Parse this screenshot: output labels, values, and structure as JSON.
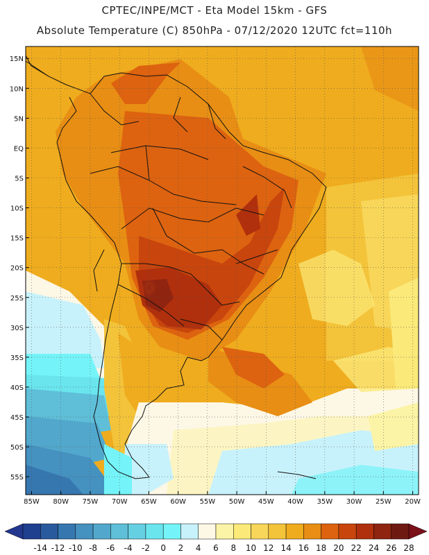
{
  "header": {
    "line1": "CPTEC/INPE/MCT -  Eta Model 15km - GFS",
    "line2": "Absolute Temperature (C) 850hPa - 07/12/2020 12UTC fct=110h"
  },
  "map": {
    "lat_labels": [
      "15N",
      "10N",
      "5N",
      "EQ",
      "5S",
      "10S",
      "15S",
      "20S",
      "25S",
      "30S",
      "35S",
      "40S",
      "45S",
      "50S",
      "55S"
    ],
    "lat_values": [
      15,
      10,
      5,
      0,
      -5,
      -10,
      -15,
      -20,
      -25,
      -30,
      -35,
      -40,
      -45,
      -50,
      -55
    ],
    "lon_labels": [
      "85W",
      "80W",
      "75W",
      "70W",
      "65W",
      "60W",
      "55W",
      "50W",
      "45W",
      "40W",
      "35W",
      "30W",
      "25W",
      "20W"
    ],
    "lon_values": [
      -85,
      -80,
      -75,
      -70,
      -65,
      -60,
      -55,
      -50,
      -45,
      -40,
      -35,
      -30,
      -25,
      -20
    ],
    "lon_range": [
      -86,
      -19
    ],
    "lat_range": [
      -58,
      17
    ]
  },
  "colorbar": {
    "labels": [
      "-14",
      "-12",
      "-10",
      "-8",
      "-6",
      "-4",
      "-2",
      "0",
      "2",
      "4",
      "6",
      "8",
      "10",
      "12",
      "14",
      "16",
      "18",
      "20",
      "22",
      "24",
      "26",
      "28"
    ],
    "colors": [
      "#1f3f8f",
      "#2a5a9e",
      "#3677b0",
      "#4591c0",
      "#52a8cc",
      "#5fbfd8",
      "#66d0e3",
      "#6ae5ee",
      "#74f4f8",
      "#c8f2fb",
      "#fdf7e6",
      "#fbf4a6",
      "#fbe979",
      "#f8d659",
      "#f3c33a",
      "#efac1e",
      "#e88e14",
      "#dd6310",
      "#c8450d",
      "#b0300d",
      "#8f2410",
      "#6e1a12"
    ],
    "under_color": "#23378f",
    "over_color": "#7a1018"
  }
}
